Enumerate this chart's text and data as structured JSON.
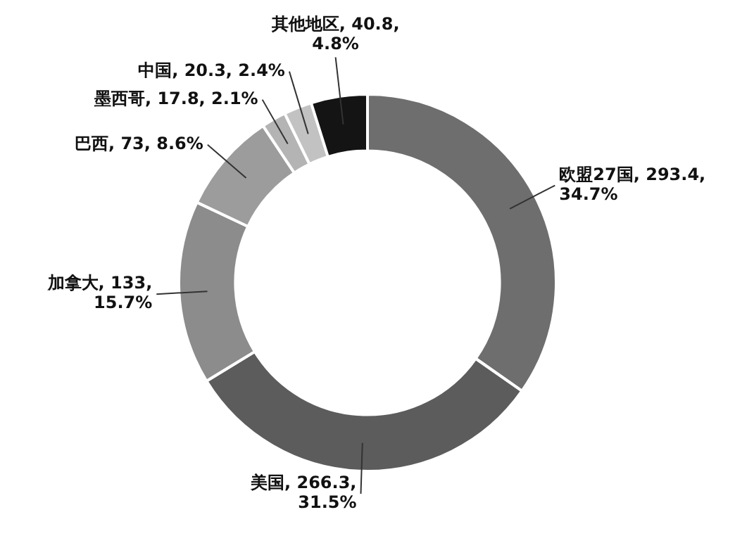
{
  "chart_data": {
    "type": "donut",
    "categories": [
      "欧盟27国",
      "美国",
      "加拿大",
      "巴西",
      "墨西哥",
      "中国",
      "其他地区"
    ],
    "values": [
      293.4,
      266.3,
      133,
      73,
      17.8,
      20.3,
      40.8
    ],
    "value_labels": [
      "293.4, 34.7%",
      "266.3, 31.5%",
      "133, 15.7%",
      "73, 8.6%",
      "17.8, 2.1%",
      "20.3, 2.4%",
      "40.8, 4.8%"
    ],
    "colors": [
      "#6e6e6e",
      "#5c5c5c",
      "#8c8c8c",
      "#9c9c9c",
      "#b4b4b4",
      "#c2c2c2",
      "#141414"
    ],
    "legend": false
  }
}
